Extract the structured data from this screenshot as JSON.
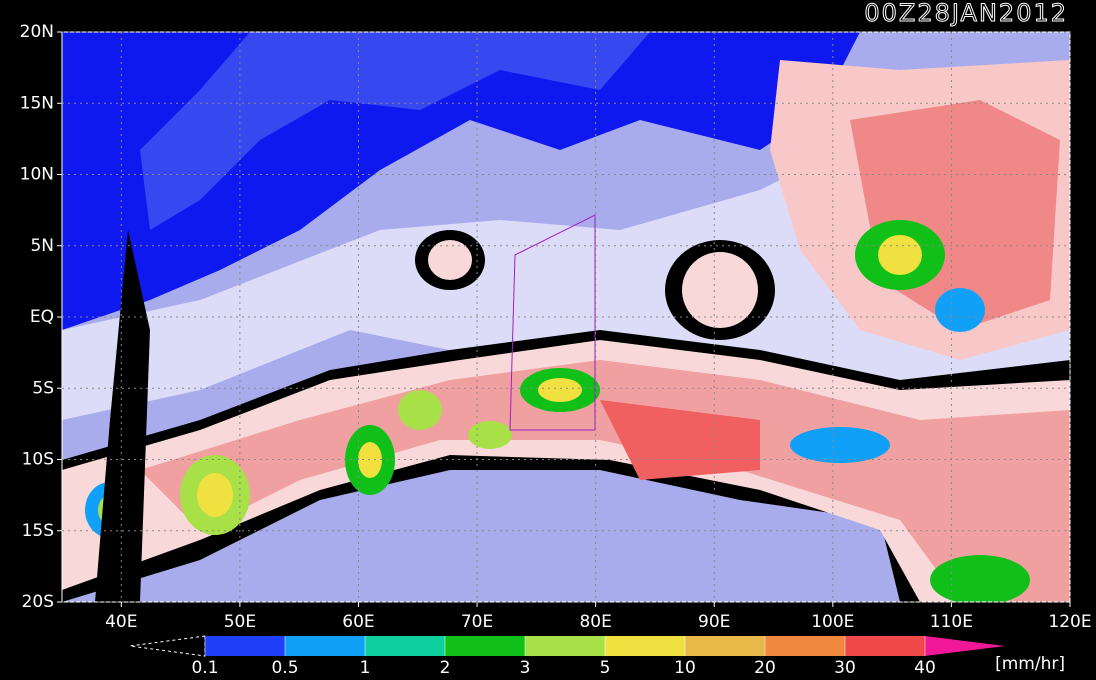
{
  "title": "00Z28JAN2012",
  "map": {
    "xlim": [
      35,
      120
    ],
    "ylim": [
      -20,
      20
    ],
    "xticks": [
      {
        "value": 40,
        "label": "40E"
      },
      {
        "value": 50,
        "label": "50E"
      },
      {
        "value": 60,
        "label": "60E"
      },
      {
        "value": 70,
        "label": "70E"
      },
      {
        "value": 80,
        "label": "80E"
      },
      {
        "value": 90,
        "label": "90E"
      },
      {
        "value": 100,
        "label": "100E"
      },
      {
        "value": 110,
        "label": "110E"
      },
      {
        "value": 120,
        "label": "120E"
      }
    ],
    "yticks": [
      {
        "value": 20,
        "label": "20N"
      },
      {
        "value": 15,
        "label": "15N"
      },
      {
        "value": 10,
        "label": "10N"
      },
      {
        "value": 5,
        "label": "5N"
      },
      {
        "value": 0,
        "label": "EQ"
      },
      {
        "value": -5,
        "label": "5S"
      },
      {
        "value": -10,
        "label": "10S"
      },
      {
        "value": -15,
        "label": "15S"
      },
      {
        "value": -20,
        "label": "20S"
      }
    ],
    "grid": true
  },
  "colorbar": {
    "levels": [
      0.1,
      0.5,
      1,
      2,
      3,
      5,
      10,
      20,
      30,
      40
    ],
    "colors": [
      "#2040f8",
      "#10a0f8",
      "#10d0a0",
      "#10c018",
      "#a8e048",
      "#f0e040",
      "#e8b848",
      "#f08840",
      "#f04848"
    ],
    "over_color": "#f01898",
    "unit": "[mm/hr]"
  }
}
